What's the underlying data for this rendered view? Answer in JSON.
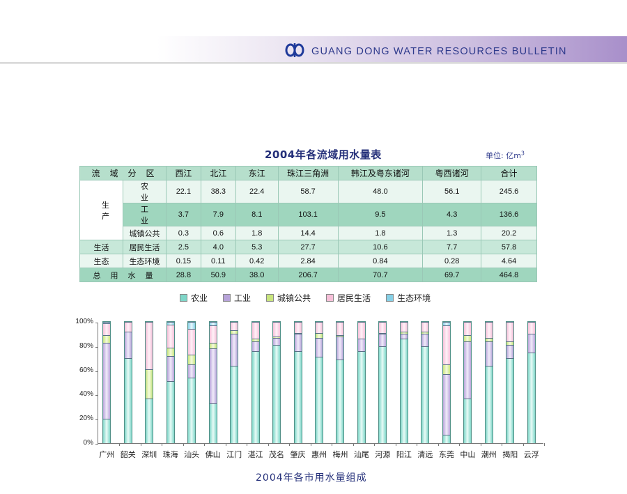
{
  "header": {
    "title": "GUANG DONG WATER RESOURCES BULLETIN",
    "logo_icon": "water-bureau-logo-icon"
  },
  "table": {
    "title": "2004年各流域用水量表",
    "unit_label": "单位: 亿m",
    "unit_sup": "3",
    "header_label": "流域分区",
    "columns": [
      "西江",
      "北江",
      "东江",
      "珠江三角洲",
      "韩江及粤东诸河",
      "粤西诸河",
      "合计"
    ],
    "groups": {
      "production": "生产",
      "living": "生活",
      "ecology": "生态"
    },
    "rows": [
      {
        "label": "农业",
        "values": [
          "22.1",
          "38.3",
          "22.4",
          "58.7",
          "48.0",
          "56.1",
          "245.6"
        ]
      },
      {
        "label": "工业",
        "values": [
          "3.7",
          "7.9",
          "8.1",
          "103.1",
          "9.5",
          "4.3",
          "136.6"
        ]
      },
      {
        "label": "城镇公共",
        "values": [
          "0.3",
          "0.6",
          "1.8",
          "14.4",
          "1.8",
          "1.3",
          "20.2"
        ]
      },
      {
        "label": "居民生活",
        "values": [
          "2.5",
          "4.0",
          "5.3",
          "27.7",
          "10.6",
          "7.7",
          "57.8"
        ]
      },
      {
        "label": "生态环境",
        "values": [
          "0.15",
          "0.11",
          "0.42",
          "2.84",
          "0.84",
          "0.28",
          "4.64"
        ]
      }
    ],
    "total": {
      "label": "总用水量",
      "values": [
        "28.8",
        "50.9",
        "38.0",
        "206.7",
        "70.7",
        "69.7",
        "464.8"
      ]
    }
  },
  "legend": [
    {
      "key": "ag",
      "label": "农业",
      "color": "#7fd6c8"
    },
    {
      "key": "ind",
      "label": "工业",
      "color": "#b7a3d9"
    },
    {
      "key": "pub",
      "label": "城镇公共",
      "color": "#c8e47d"
    },
    {
      "key": "res",
      "label": "居民生活",
      "color": "#f6bfd8"
    },
    {
      "key": "eco",
      "label": "生态环境",
      "color": "#86d0e6"
    }
  ],
  "chart_data": {
    "type": "bar",
    "stacked": true,
    "percent": true,
    "title": "2004年各市用水量组成",
    "xlabel": "",
    "ylabel": "",
    "ylim": [
      0,
      100
    ],
    "y_ticks": [
      "0%",
      "20%",
      "40%",
      "60%",
      "80%",
      "100%"
    ],
    "grid": false,
    "legend_position": "top",
    "categories": [
      "广州",
      "韶关",
      "深圳",
      "珠海",
      "汕头",
      "佛山",
      "江门",
      "湛江",
      "茂名",
      "肇庆",
      "惠州",
      "梅州",
      "汕尾",
      "河源",
      "阳江",
      "清远",
      "东莞",
      "中山",
      "潮州",
      "揭阳",
      "云浮"
    ],
    "series": [
      {
        "name": "农业",
        "values": [
          20,
          70,
          37,
          51,
          54,
          33,
          64,
          76,
          81,
          76,
          71,
          69,
          76,
          80,
          86,
          80,
          7,
          37,
          64,
          70,
          75
        ]
      },
      {
        "name": "工业",
        "values": [
          63,
          22,
          0,
          21,
          11,
          45,
          26,
          8,
          6,
          14,
          16,
          19,
          10,
          10,
          4,
          10,
          50,
          47,
          20,
          11,
          15
        ]
      },
      {
        "name": "城镇公共",
        "values": [
          6,
          0,
          24,
          7,
          8,
          5,
          3,
          2,
          1,
          1,
          4,
          1,
          0,
          1,
          2,
          2,
          8,
          5,
          3,
          3,
          0
        ]
      },
      {
        "name": "居民生活",
        "values": [
          10,
          8,
          39,
          19,
          21,
          14,
          7,
          14,
          12,
          9,
          9,
          11,
          14,
          9,
          8,
          8,
          32,
          11,
          13,
          16,
          10
        ]
      },
      {
        "name": "生态环境",
        "values": [
          1,
          0,
          0,
          2,
          6,
          3,
          0,
          0,
          0,
          0,
          0,
          0,
          0,
          0,
          0,
          0,
          3,
          0,
          0,
          0,
          0
        ]
      }
    ]
  }
}
